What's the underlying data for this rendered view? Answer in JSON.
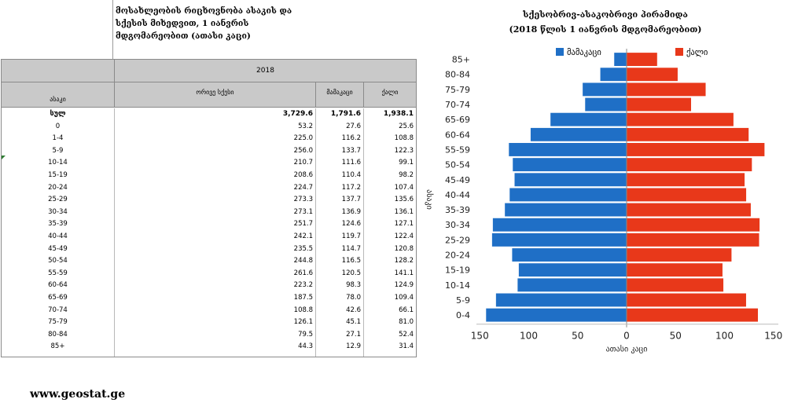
{
  "table": {
    "title": "მოსახლეობის რიცხოვნობა ასაკის და სქესის მიხედვით, 1 იანვრის მდგომარეობით (ათასი კაცი)",
    "year": "2018",
    "age_header": "ასაკი",
    "col_both": "ორივე სქესი",
    "col_male": "მამაკაცი",
    "col_female": "ქალი",
    "rows": [
      {
        "age": "სულ",
        "both": "3,729.6",
        "male": "1,791.6",
        "female": "1,938.1"
      },
      {
        "age": "0",
        "both": "53.2",
        "male": "27.6",
        "female": "25.6"
      },
      {
        "age": "1-4",
        "both": "225.0",
        "male": "116.2",
        "female": "108.8"
      },
      {
        "age": "5-9",
        "both": "256.0",
        "male": "133.7",
        "female": "122.3"
      },
      {
        "age": "10-14",
        "both": "210.7",
        "male": "111.6",
        "female": "99.1"
      },
      {
        "age": "15-19",
        "both": "208.6",
        "male": "110.4",
        "female": "98.2"
      },
      {
        "age": "20-24",
        "both": "224.7",
        "male": "117.2",
        "female": "107.4"
      },
      {
        "age": "25-29",
        "both": "273.3",
        "male": "137.7",
        "female": "135.6"
      },
      {
        "age": "30-34",
        "both": "273.1",
        "male": "136.9",
        "female": "136.1"
      },
      {
        "age": "35-39",
        "both": "251.7",
        "male": "124.6",
        "female": "127.1"
      },
      {
        "age": "40-44",
        "both": "242.1",
        "male": "119.7",
        "female": "122.4"
      },
      {
        "age": "45-49",
        "both": "235.5",
        "male": "114.7",
        "female": "120.8"
      },
      {
        "age": "50-54",
        "both": "244.8",
        "male": "116.5",
        "female": "128.2"
      },
      {
        "age": "55-59",
        "both": "261.6",
        "male": "120.5",
        "female": "141.1"
      },
      {
        "age": "60-64",
        "both": "223.2",
        "male": "98.3",
        "female": "124.9"
      },
      {
        "age": "65-69",
        "both": "187.5",
        "male": "78.0",
        "female": "109.4"
      },
      {
        "age": "70-74",
        "both": "108.8",
        "male": "42.6",
        "female": "66.1"
      },
      {
        "age": "75-79",
        "both": "126.1",
        "male": "45.1",
        "female": "81.0"
      },
      {
        "age": "80-84",
        "both": "79.5",
        "male": "27.1",
        "female": "52.4"
      },
      {
        "age": "85+",
        "both": "44.3",
        "male": "12.9",
        "female": "31.4"
      }
    ]
  },
  "footer": "www.geostat.ge",
  "chart_data": {
    "type": "bar",
    "title_line1": "სქესობრივ-ასაკობრივი პირამიდა",
    "title_line2": "(2018 წლის 1 იანვრის მდგომარეობით)",
    "xlabel": "ათასი კაცი",
    "ylabel": "ასაკი",
    "xlim": [
      -150,
      150
    ],
    "xticks": [
      -150,
      -100,
      -50,
      0,
      50,
      100,
      150
    ],
    "xtick_labels": [
      "150",
      "100",
      "50",
      "0",
      "50",
      "100",
      "150"
    ],
    "legend_position": "top",
    "categories": [
      "0-4",
      "5-9",
      "10-14",
      "15-19",
      "20-24",
      "25-29",
      "30-34",
      "35-39",
      "40-44",
      "45-49",
      "50-54",
      "55-59",
      "60-64",
      "65-69",
      "70-74",
      "75-79",
      "80-84",
      "85+"
    ],
    "series": [
      {
        "name": "მამაკაცი",
        "color": "#1f6fc6",
        "values": [
          143.8,
          133.7,
          111.6,
          110.4,
          117.2,
          137.7,
          136.9,
          124.6,
          119.7,
          114.7,
          116.5,
          120.5,
          98.3,
          78.0,
          42.6,
          45.1,
          27.1,
          12.9
        ]
      },
      {
        "name": "ქალი",
        "color": "#e8381a",
        "values": [
          134.4,
          122.3,
          99.1,
          98.2,
          107.4,
          135.6,
          136.1,
          127.1,
          122.4,
          120.8,
          128.2,
          141.1,
          124.9,
          109.4,
          66.1,
          81.0,
          52.4,
          31.4
        ]
      }
    ]
  }
}
